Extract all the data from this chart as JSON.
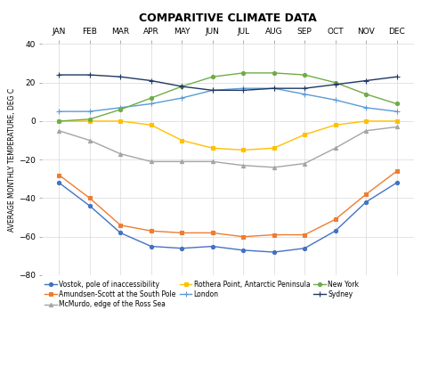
{
  "title": "COMPARITIVE CLIMATE DATA",
  "ylabel": "AVERAGE MONTHLY TEMPERATURE, DEG C",
  "months": [
    "JAN",
    "FEB",
    "MAR",
    "APR",
    "MAY",
    "JUN",
    "JUL",
    "AUG",
    "SEP",
    "OCT",
    "NOV",
    "DEC"
  ],
  "ylim": [
    -80,
    40
  ],
  "yticks": [
    -80,
    -60,
    -40,
    -20,
    0,
    20,
    40
  ],
  "series": [
    {
      "label": "Vostok, pole of inaccessibility",
      "color": "#4472C4",
      "marker": "o",
      "markersize": 3,
      "values": [
        -32,
        -44,
        -58,
        -65,
        -66,
        -65,
        -67,
        -68,
        -66,
        -57,
        -42,
        -32
      ]
    },
    {
      "label": "Amundsen-Scott at the South Pole",
      "color": "#ED7D31",
      "marker": "s",
      "markersize": 3,
      "values": [
        -28,
        -40,
        -54,
        -57,
        -58,
        -58,
        -60,
        -59,
        -59,
        -51,
        -38,
        -26
      ]
    },
    {
      "label": "McMurdo, edge of the Ross Sea",
      "color": "#A5A5A5",
      "marker": "^",
      "markersize": 3,
      "values": [
        -5,
        -10,
        -17,
        -21,
        -21,
        -21,
        -23,
        -24,
        -22,
        -14,
        -5,
        -3
      ]
    },
    {
      "label": "Rothera Point, Antarctic Peninsula",
      "color": "#FFC000",
      "marker": "s",
      "markersize": 3,
      "values": [
        0,
        0,
        0,
        -2,
        -10,
        -14,
        -15,
        -14,
        -7,
        -2,
        0,
        0
      ]
    },
    {
      "label": "London",
      "color": "#5B9BD5",
      "marker": "+",
      "markersize": 5,
      "values": [
        5,
        5,
        7,
        9,
        12,
        16,
        17,
        17,
        14,
        11,
        7,
        5
      ]
    },
    {
      "label": "New York",
      "color": "#70AD47",
      "marker": "o",
      "markersize": 3,
      "values": [
        0,
        1,
        6,
        12,
        18,
        23,
        25,
        25,
        24,
        20,
        14,
        9
      ]
    },
    {
      "label": "Sydney",
      "color": "#1F3864",
      "marker": "+",
      "markersize": 5,
      "values": [
        24,
        24,
        23,
        21,
        18,
        16,
        16,
        17,
        17,
        19,
        21,
        23
      ]
    }
  ],
  "background_color": "#FFFFFF",
  "grid_color": "#D9D9D9",
  "title_fontsize": 9,
  "axis_label_fontsize": 5.5,
  "tick_fontsize": 6.5,
  "legend_fontsize": 5.5
}
